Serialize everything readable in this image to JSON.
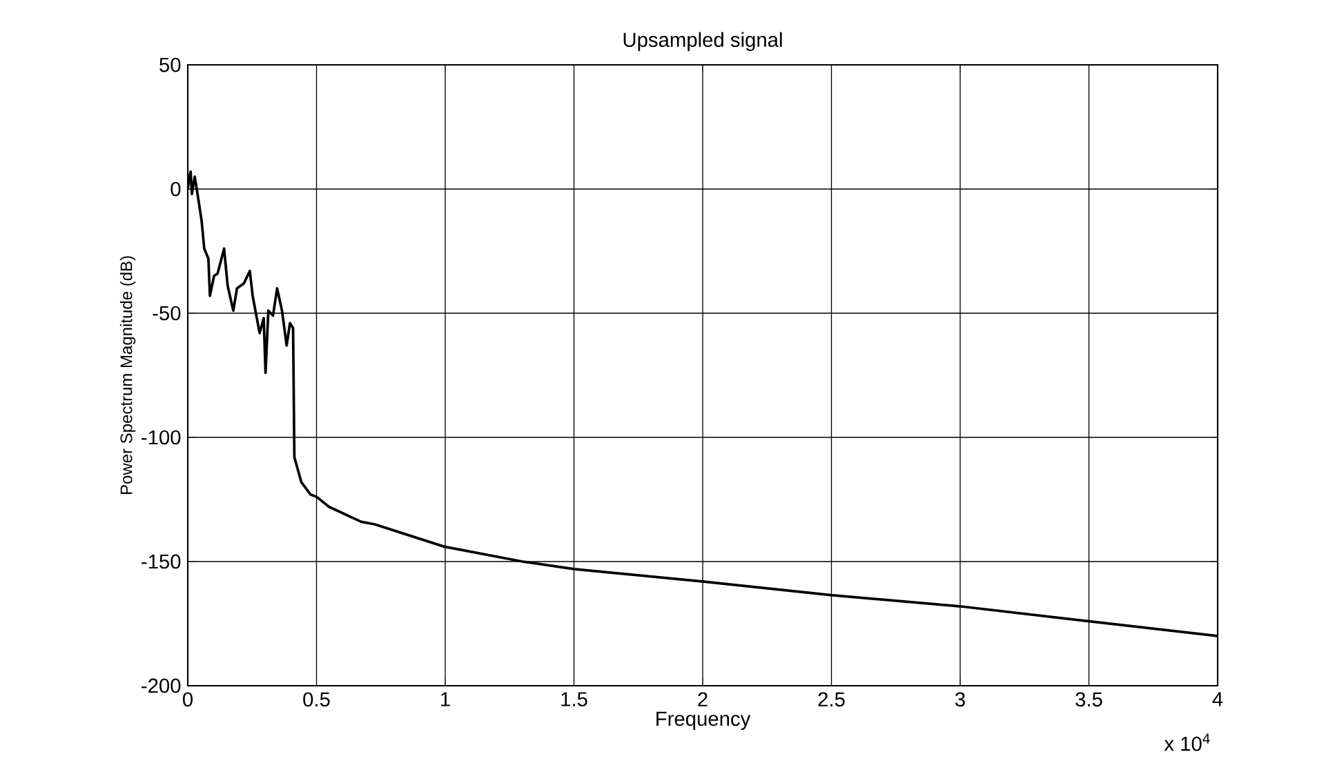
{
  "chart_data": {
    "type": "line",
    "title": "Upsampled signal",
    "xlabel": "Frequency",
    "ylabel": "Power Spectrum Magnitude (dB)",
    "annotations": [
      "x 10$^{4}$"
    ],
    "series": [
      {
        "color": "#000000",
        "x": [
          0,
          0.005,
          0.011,
          0.016,
          0.027,
          0.038,
          0.054,
          0.064,
          0.08,
          0.086,
          0.102,
          0.116,
          0.141,
          0.155,
          0.177,
          0.191,
          0.218,
          0.241,
          0.252,
          0.279,
          0.295,
          0.302,
          0.313,
          0.331,
          0.347,
          0.366,
          0.384,
          0.397,
          0.409,
          0.414,
          0.441,
          0.477,
          0.501,
          0.549,
          0.674,
          0.726,
          0.996,
          1.3,
          1.5,
          1.999,
          2.498,
          2.997,
          3.496,
          4.0
        ],
        "values": [
          0,
          4,
          7,
          -2,
          5,
          -2,
          -13,
          -24,
          -28,
          -43,
          -35,
          -34,
          -24,
          -39,
          -49,
          -40,
          -38,
          -33,
          -43,
          -58,
          -52,
          -74,
          -49,
          -51,
          -40,
          -49,
          -63,
          -54,
          -56,
          -108,
          -118,
          -123,
          -124,
          -128,
          -134,
          -135,
          -144,
          -150,
          -153,
          -158,
          -163.5,
          -168,
          -174,
          -180
        ]
      }
    ],
    "xlim": [
      0,
      4
    ],
    "ylim": [
      -200,
      50
    ],
    "xticks": [
      0,
      0.5,
      1,
      1.5,
      2,
      2.5,
      3,
      3.5,
      4
    ],
    "yticks": [
      -200,
      -150,
      -100,
      -50,
      0,
      50
    ],
    "grid": true,
    "marker": "none",
    "line_style": "solid"
  }
}
